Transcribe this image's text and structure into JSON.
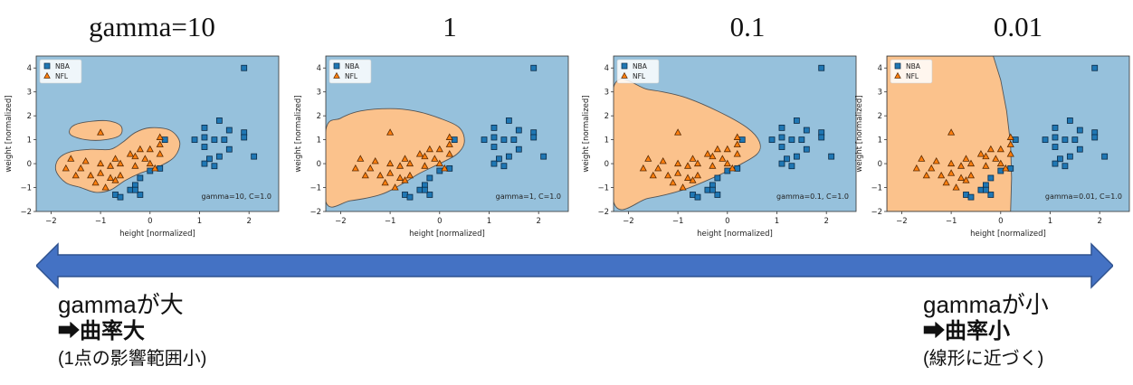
{
  "top_titles": [
    "gamma=10",
    "1",
    "0.1",
    "0.01"
  ],
  "colors": {
    "nba": "#1f77b4",
    "nfl": "#ff7f0e",
    "region_nba": "#96c1dc",
    "region_nfl": "#fbc28c",
    "arrow": "#4472c4"
  },
  "chart_data": [
    {
      "type": "scatter",
      "xlabel": "height [normalized]",
      "ylabel": "weight [normalized]",
      "xlim": [
        -2.3,
        2.6
      ],
      "ylim": [
        -2,
        4.5
      ],
      "xticks": [
        "−2",
        "−1",
        "0",
        "1",
        "2"
      ],
      "yticks": [
        "−2",
        "−1",
        "0",
        "1",
        "2",
        "3",
        "4"
      ],
      "legend": [
        "NBA",
        "NFL"
      ],
      "annotation": "gamma=10, C=1.0"
    },
    {
      "type": "scatter",
      "xlabel": "height [normalized]",
      "ylabel": "weight [normalized]",
      "xlim": [
        -2.3,
        2.6
      ],
      "ylim": [
        -2,
        4.5
      ],
      "xticks": [
        "−2",
        "−1",
        "0",
        "1",
        "2"
      ],
      "yticks": [
        "−2",
        "−1",
        "0",
        "1",
        "2",
        "3",
        "4"
      ],
      "legend": [
        "NBA",
        "NFL"
      ],
      "annotation": "gamma=1, C=1.0"
    },
    {
      "type": "scatter",
      "xlabel": "height [normalized]",
      "ylabel": "weight [normalized]",
      "xlim": [
        -2.3,
        2.6
      ],
      "ylim": [
        -2,
        4.5
      ],
      "xticks": [
        "−2",
        "−1",
        "0",
        "1",
        "2"
      ],
      "yticks": [
        "−2",
        "−1",
        "0",
        "1",
        "2",
        "3",
        "4"
      ],
      "legend": [
        "NBA",
        "NFL"
      ],
      "annotation": "gamma=0.1, C=1.0"
    },
    {
      "type": "scatter",
      "xlabel": "height [normalized]",
      "ylabel": "weight [normalized]",
      "xlim": [
        -2.3,
        2.6
      ],
      "ylim": [
        -2,
        4.5
      ],
      "xticks": [
        "−2",
        "−1",
        "0",
        "1",
        "2"
      ],
      "yticks": [
        "−2",
        "−1",
        "0",
        "1",
        "2",
        "3",
        "4"
      ],
      "legend": [
        "NBA",
        "NFL"
      ],
      "annotation": "gamma=0.01, C=1.0"
    }
  ],
  "nba_points": [
    [
      1.9,
      4.0
    ],
    [
      0.3,
      1.0
    ],
    [
      0.9,
      1.0
    ],
    [
      1.1,
      1.5
    ],
    [
      1.4,
      1.8
    ],
    [
      1.1,
      1.1
    ],
    [
      1.6,
      1.4
    ],
    [
      1.9,
      1.3
    ],
    [
      1.9,
      1.1
    ],
    [
      1.5,
      1.0
    ],
    [
      1.3,
      1.0
    ],
    [
      1.1,
      0.7
    ],
    [
      1.6,
      0.6
    ],
    [
      2.1,
      0.3
    ],
    [
      1.2,
      0.2
    ],
    [
      1.4,
      0.3
    ],
    [
      1.1,
      0.0
    ],
    [
      1.3,
      -0.1
    ],
    [
      0.2,
      -0.2
    ],
    [
      0.0,
      -0.3
    ],
    [
      -0.2,
      -0.6
    ],
    [
      -0.3,
      -0.9
    ],
    [
      -0.4,
      -1.1
    ],
    [
      -0.7,
      -1.3
    ],
    [
      -0.6,
      -1.4
    ],
    [
      -0.2,
      -1.3
    ],
    [
      -0.3,
      -1.1
    ]
  ],
  "nfl_points": [
    [
      -1.0,
      1.3
    ],
    [
      0.2,
      1.1
    ],
    [
      0.2,
      0.8
    ],
    [
      -0.2,
      0.6
    ],
    [
      0.0,
      0.6
    ],
    [
      0.2,
      0.4
    ],
    [
      -0.3,
      0.3
    ],
    [
      -0.1,
      0.2
    ],
    [
      -0.4,
      0.4
    ],
    [
      -0.7,
      0.2
    ],
    [
      -1.6,
      0.2
    ],
    [
      -1.3,
      0.1
    ],
    [
      -1.0,
      0.0
    ],
    [
      -0.8,
      -0.1
    ],
    [
      -0.6,
      0.0
    ],
    [
      -0.3,
      -0.1
    ],
    [
      0.0,
      0.0
    ],
    [
      0.1,
      -0.2
    ],
    [
      -1.4,
      -0.2
    ],
    [
      -1.5,
      -0.5
    ],
    [
      -1.2,
      -0.5
    ],
    [
      -1.0,
      -0.4
    ],
    [
      -0.8,
      -0.6
    ],
    [
      -0.6,
      -0.5
    ],
    [
      -1.1,
      -0.8
    ],
    [
      -0.9,
      -1.0
    ],
    [
      -0.7,
      -0.7
    ],
    [
      -1.7,
      -0.2
    ]
  ],
  "arrow": {
    "left_label": [
      "gammaが大",
      "➡曲率大",
      "(1点の影響範囲小)"
    ],
    "right_label": [
      "gammaが小",
      "➡曲率小",
      "(線形に近づく)"
    ]
  }
}
